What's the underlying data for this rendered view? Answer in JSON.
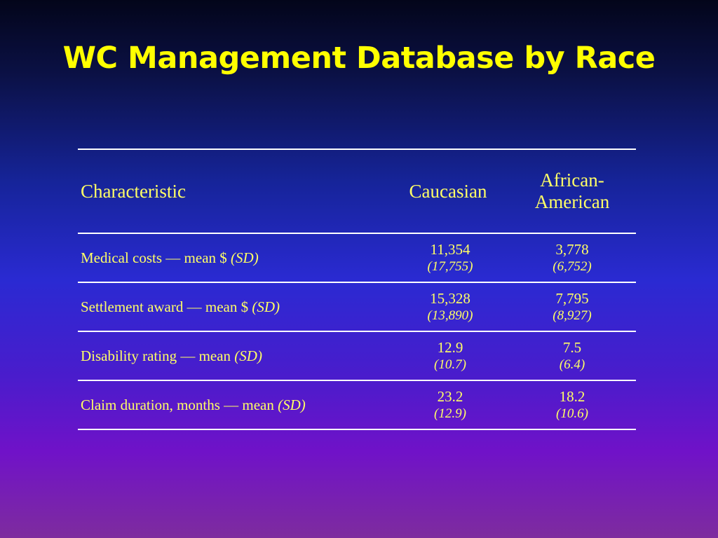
{
  "slide": {
    "title": "WC Management Database by Race"
  },
  "table": {
    "headers": {
      "characteristic": "Characteristic",
      "caucasian": "Caucasian",
      "african_american_line1": "African-",
      "african_american_line2": "American"
    },
    "rows": [
      {
        "label": "Medical costs — mean $",
        "sd_label": "(SD)",
        "caucasian_mean": "11,354",
        "caucasian_sd": "(17,755)",
        "african_american_mean": "3,778",
        "african_american_sd": "(6,752)"
      },
      {
        "label": "Settlement award — mean $",
        "sd_label": "(SD)",
        "caucasian_mean": "15,328",
        "caucasian_sd": "(13,890)",
        "african_american_mean": "7,795",
        "african_american_sd": "(8,927)"
      },
      {
        "label": "Disability rating — mean",
        "sd_label": "(SD)",
        "caucasian_mean": "12.9",
        "caucasian_sd": "(10.7)",
        "african_american_mean": "7.5",
        "african_american_sd": "(6.4)"
      },
      {
        "label": "Claim duration, months — mean",
        "sd_label": "(SD)",
        "caucasian_mean": "23.2",
        "caucasian_sd": "(12.9)",
        "african_american_mean": "18.2",
        "african_american_sd": "(10.6)"
      }
    ]
  },
  "colors": {
    "title": "#ffff00",
    "table_text": "#ffff66",
    "rules": "#ffffff",
    "background_top": "#03051a",
    "background_bottom": "#7e2c9e"
  }
}
